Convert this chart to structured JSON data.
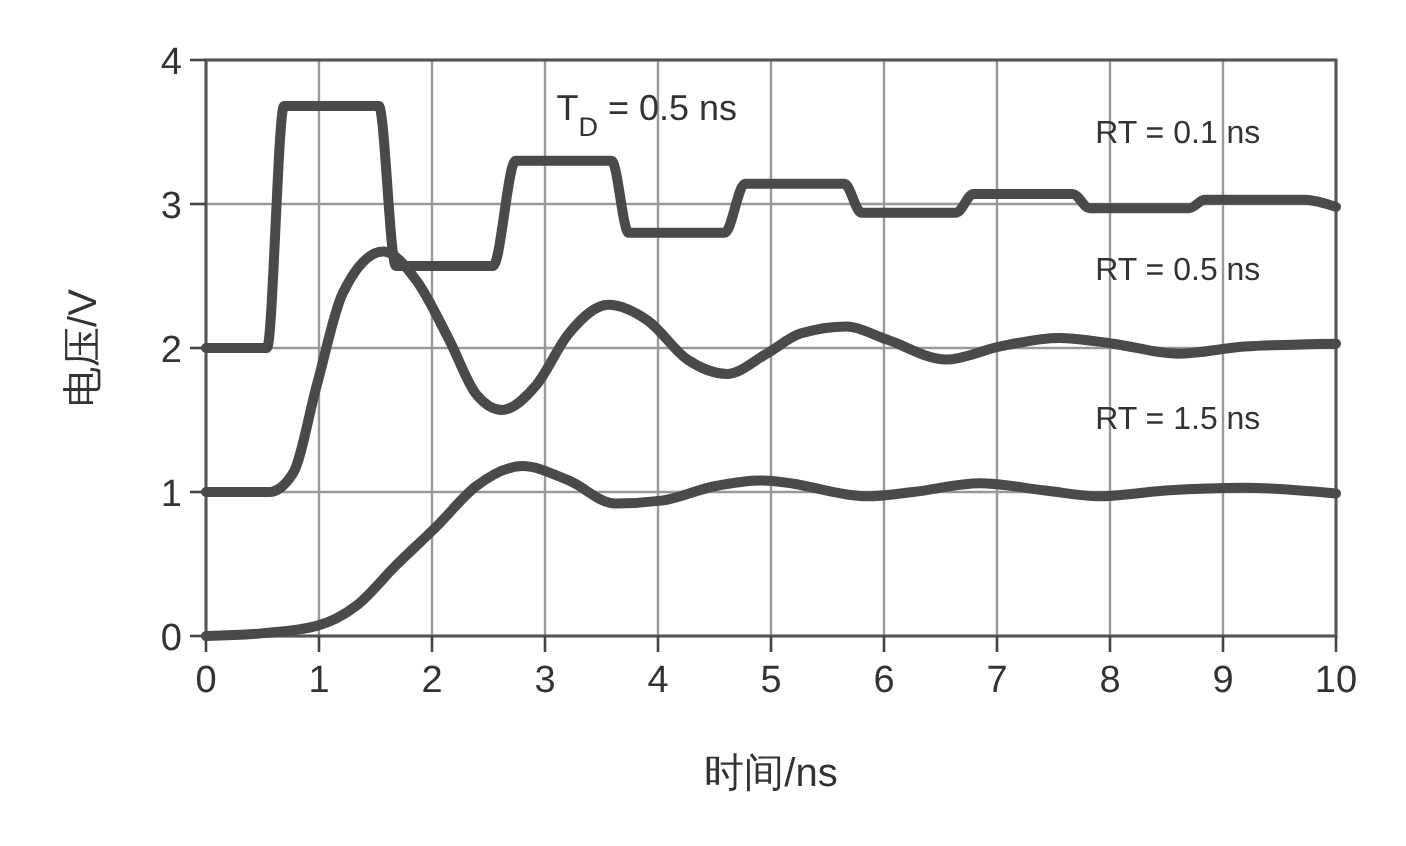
{
  "chart_data": {
    "type": "line",
    "xlabel": "时间/ns",
    "ylabel": "电压/V",
    "xlim": [
      0,
      10
    ],
    "ylim": [
      0,
      4
    ],
    "xticks": [
      0,
      1,
      2,
      3,
      4,
      5,
      6,
      7,
      8,
      9,
      10
    ],
    "yticks": [
      0,
      1,
      2,
      3,
      4
    ],
    "grid": true,
    "marker": "none",
    "line_style": "solid",
    "annotations": [
      "T$_{D}$ = 0.5 ns"
    ],
    "series": [
      {
        "name": "RT = 0.1 ns",
        "color": "#4a4a4a",
        "x": [
          0,
          0.54,
          0.69,
          1.53,
          1.68,
          2.54,
          2.74,
          3.59,
          3.74,
          4.59,
          4.77,
          5.65,
          5.8,
          6.64,
          6.79,
          7.67,
          7.82,
          8.7,
          8.84,
          9.72,
          10
        ],
        "values": [
          2,
          2,
          3.68,
          3.68,
          2.57,
          2.57,
          3.3,
          3.3,
          2.8,
          2.8,
          3.14,
          3.14,
          2.94,
          2.94,
          3.07,
          3.07,
          2.97,
          2.97,
          3.03,
          3.03,
          2.98
        ]
      },
      {
        "name": "RT = 0.5 ns",
        "color": "#4a4a4a",
        "x": [
          0,
          0.56,
          0.77,
          0.98,
          1.21,
          1.57,
          1.86,
          2.15,
          2.39,
          2.62,
          2.92,
          3.21,
          3.56,
          3.91,
          4.26,
          4.61,
          4.96,
          5.26,
          5.67,
          6.02,
          6.55,
          7.02,
          7.55,
          8.03,
          8.6,
          9.19,
          10
        ],
        "values": [
          1,
          1,
          1.13,
          1.74,
          2.38,
          2.67,
          2.47,
          2.06,
          1.68,
          1.57,
          1.74,
          2.1,
          2.3,
          2.19,
          1.92,
          1.82,
          1.96,
          2.1,
          2.15,
          2.06,
          1.92,
          2.01,
          2.07,
          2.03,
          1.96,
          2.01,
          2.03
        ]
      },
      {
        "name": "RT = 1.5 ns",
        "color": "#4a4a4a",
        "x": [
          0,
          0.51,
          0.98,
          1.33,
          1.68,
          2.04,
          2.39,
          2.8,
          3.21,
          3.62,
          4.03,
          4.5,
          4.91,
          5.09,
          5.85,
          6.26,
          6.85,
          7.43,
          7.9,
          8.49,
          9.19,
          10
        ],
        "values": [
          0,
          0.02,
          0.07,
          0.21,
          0.49,
          0.76,
          1.04,
          1.18,
          1.08,
          0.92,
          0.94,
          1.04,
          1.08,
          1.07,
          0.97,
          1,
          1.06,
          1.01,
          0.97,
          1.01,
          1.03,
          0.99
        ]
      }
    ]
  }
}
